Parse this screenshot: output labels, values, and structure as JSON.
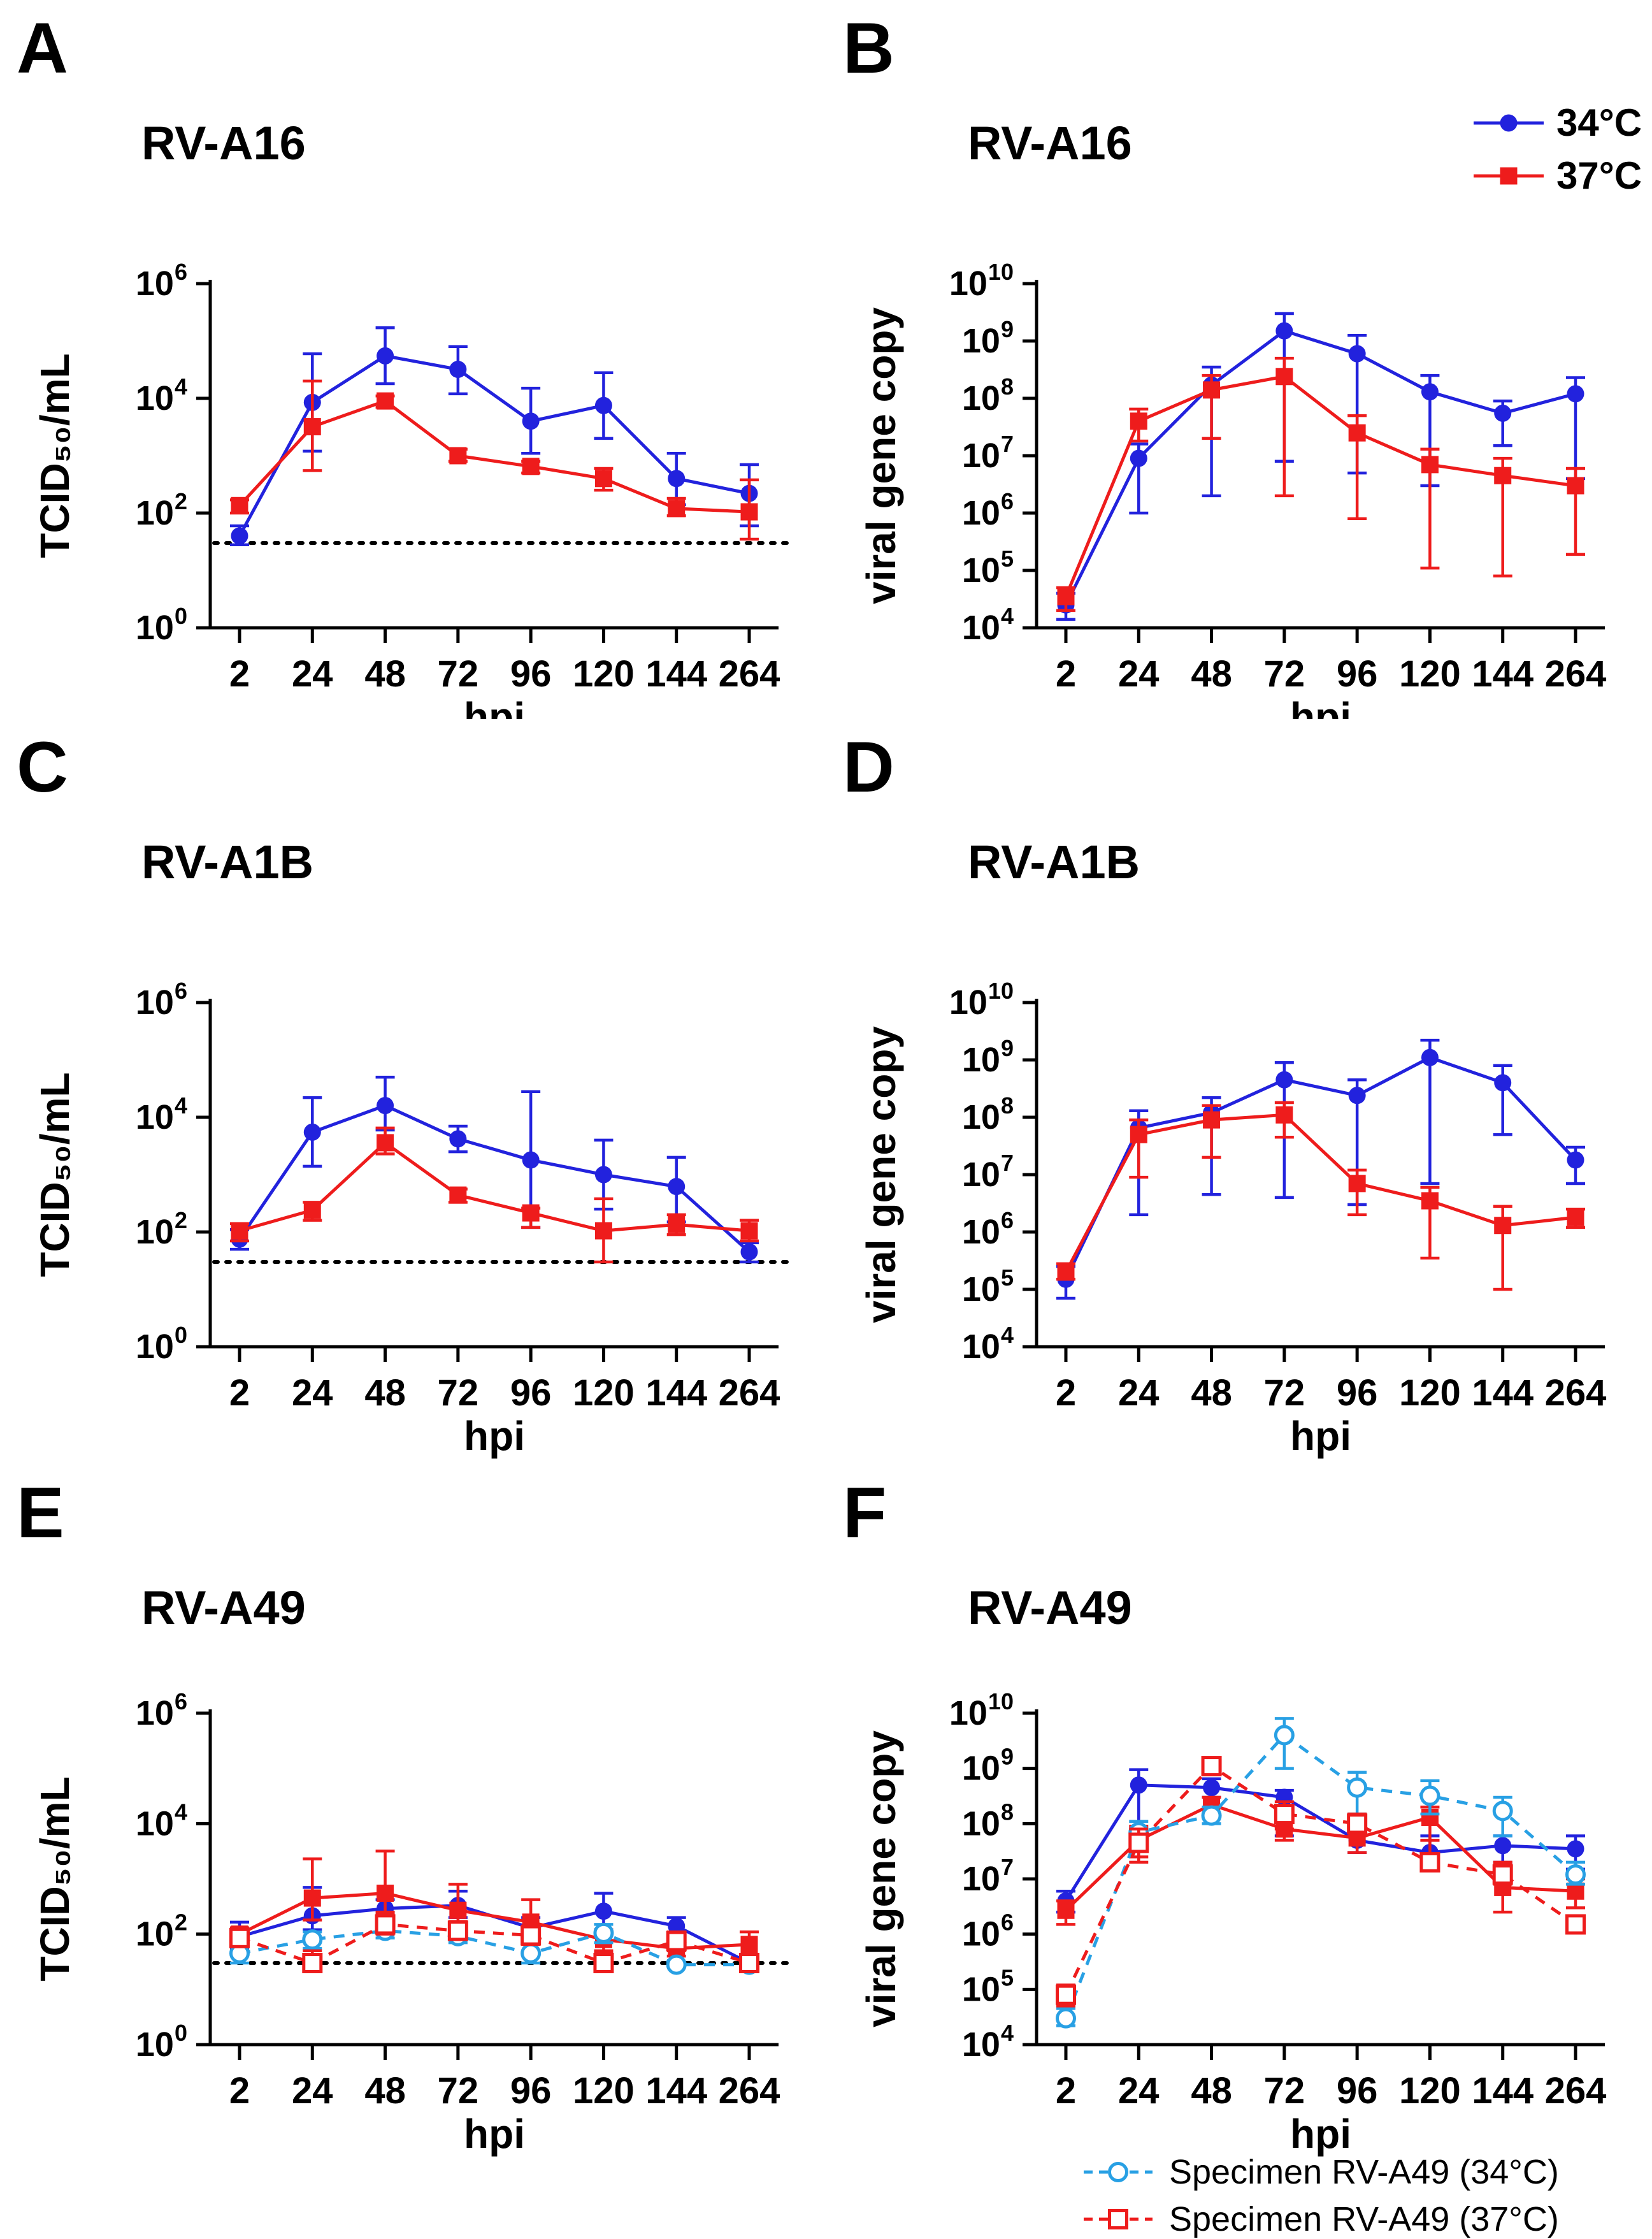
{
  "figure": {
    "colors": {
      "blue_34c": "#2222dd",
      "red_37c": "#ee1c1c",
      "cyan_specimen": "#28a0e4",
      "axis": "#000000"
    }
  },
  "legend_top": {
    "items": [
      {
        "label": "34°C",
        "color": "#2222dd",
        "marker": "circle",
        "fill": "solid",
        "dash": false
      },
      {
        "label": "37°C",
        "color": "#ee1c1c",
        "marker": "square",
        "fill": "solid",
        "dash": false
      }
    ]
  },
  "legend_bottom": {
    "items": [
      {
        "label": "Specimen RV-A49 (34°C)",
        "color": "#28a0e4",
        "marker": "circle",
        "fill": "open",
        "dash": true
      },
      {
        "label": "Specimen RV-A49 (37°C)",
        "color": "#ee1c1c",
        "marker": "square",
        "fill": "open",
        "dash": true
      }
    ]
  },
  "chart_data": [
    {
      "panel": "A",
      "title": "RV-A16",
      "type": "line",
      "x": [
        "2",
        "24",
        "48",
        "72",
        "96",
        "120",
        "144",
        "264"
      ],
      "xlabel": "hpi",
      "ylabel": "TCID₅₀/mL",
      "log_ymin": 0,
      "log_ymax": 6,
      "tick_step": 2,
      "detection_limit": 30,
      "series": [
        {
          "name": "34°C",
          "color": "#2222dd",
          "marker": "circle",
          "fill": "solid",
          "dash": false,
          "values": [
            40,
            8500,
            55000,
            32000,
            4000,
            7500,
            400,
            220
          ],
          "err_lo": [
            28,
            1200,
            18000,
            12000,
            1100,
            2000,
            140,
            60
          ],
          "err_hi": [
            60,
            60000,
            170000,
            80000,
            15000,
            28000,
            1100,
            700
          ]
        },
        {
          "name": "37°C",
          "color": "#ee1c1c",
          "marker": "square",
          "fill": "solid",
          "dash": false,
          "values": [
            135,
            3200,
            9000,
            1000,
            650,
            400,
            120,
            105
          ],
          "err_lo": [
            100,
            550,
            7000,
            800,
            500,
            250,
            90,
            35
          ],
          "err_hi": [
            170,
            20000,
            11000,
            1300,
            800,
            600,
            180,
            380
          ]
        }
      ]
    },
    {
      "panel": "B",
      "title": "RV-A16",
      "type": "line",
      "x": [
        "2",
        "24",
        "48",
        "72",
        "96",
        "120",
        "144",
        "264"
      ],
      "xlabel": "hpi",
      "ylabel": "viral gene copy",
      "log_ymin": 4,
      "log_ymax": 10,
      "tick_step": 1,
      "detection_limit": null,
      "series": [
        {
          "name": "34°C",
          "color": "#2222dd",
          "marker": "circle",
          "fill": "solid",
          "dash": false,
          "values": [
            25000.0,
            9000000.0,
            170000000.0,
            1500000000.0,
            600000000.0,
            130000000.0,
            55000000.0,
            120000000.0
          ],
          "err_lo": [
            14000.0,
            1000000.0,
            2000000.0,
            8000000.0,
            5000000.0,
            3000000.0,
            15000000.0,
            4000000.0
          ],
          "err_hi": [
            40000.0,
            16000000.0,
            350000000.0,
            3000000000.0,
            1250000000.0,
            250000000.0,
            90000000.0,
            230000000.0
          ]
        },
        {
          "name": "37°C",
          "color": "#ee1c1c",
          "marker": "square",
          "fill": "solid",
          "dash": false,
          "values": [
            35000.0,
            40000000.0,
            140000000.0,
            240000000.0,
            25000000.0,
            7000000.0,
            4500000.0,
            3000000.0
          ],
          "err_lo": [
            20000.0,
            18000000.0,
            20000000.0,
            2000000.0,
            800000.0,
            110000.0,
            80000.0,
            190000.0
          ],
          "err_hi": [
            50000.0,
            65000000.0,
            250000000.0,
            500000000.0,
            50000000.0,
            13000000.0,
            9000000.0,
            6000000.0
          ]
        }
      ]
    },
    {
      "panel": "C",
      "title": "RV-A1B",
      "type": "line",
      "x": [
        "2",
        "24",
        "48",
        "72",
        "96",
        "120",
        "144",
        "264"
      ],
      "xlabel": "hpi",
      "ylabel": "TCID₅₀/mL",
      "log_ymin": 0,
      "log_ymax": 6,
      "tick_step": 2,
      "detection_limit": 30,
      "series": [
        {
          "name": "34°C",
          "color": "#2222dd",
          "marker": "circle",
          "fill": "solid",
          "dash": false,
          "values": [
            75,
            5500,
            16000,
            4200,
            1800,
            1000,
            620,
            45
          ],
          "err_lo": [
            50,
            1400,
            6000,
            2500,
            120,
            250,
            150,
            30
          ],
          "err_hi": [
            110,
            22000,
            50000,
            7000,
            28000,
            4000,
            2000,
            65
          ]
        },
        {
          "name": "37°C",
          "color": "#ee1c1c",
          "marker": "square",
          "fill": "solid",
          "dash": false,
          "values": [
            105,
            240,
            3600,
            440,
            215,
            105,
            135,
            105
          ],
          "err_lo": [
            70,
            160,
            2300,
            330,
            120,
            30,
            90,
            70
          ],
          "err_hi": [
            140,
            330,
            6500,
            560,
            260,
            380,
            200,
            160
          ]
        }
      ]
    },
    {
      "panel": "D",
      "title": "RV-A1B",
      "type": "line",
      "x": [
        "2",
        "24",
        "48",
        "72",
        "96",
        "120",
        "144",
        "264"
      ],
      "xlabel": "hpi",
      "ylabel": "viral gene copy",
      "log_ymin": 4,
      "log_ymax": 10,
      "tick_step": 1,
      "detection_limit": null,
      "series": [
        {
          "name": "34°C",
          "color": "#2222dd",
          "marker": "circle",
          "fill": "solid",
          "dash": false,
          "values": [
            150000.0,
            65000000.0,
            120000000.0,
            450000000.0,
            240000000.0,
            1100000000.0,
            400000000.0,
            18000000.0
          ],
          "err_lo": [
            70000.0,
            2000000.0,
            4500000.0,
            4000000.0,
            3000000.0,
            7000000.0,
            50000000.0,
            7000000.0
          ],
          "err_hi": [
            250000.0,
            130000000.0,
            220000000.0,
            900000000.0,
            450000000.0,
            2200000000.0,
            800000000.0,
            30000000.0
          ]
        },
        {
          "name": "37°C",
          "color": "#ee1c1c",
          "marker": "square",
          "fill": "solid",
          "dash": false,
          "values": [
            200000.0,
            50000000.0,
            90000000.0,
            110000000.0,
            7000000.0,
            3500000.0,
            1300000.0,
            1800000.0
          ],
          "err_lo": [
            150000.0,
            9000000.0,
            20000000.0,
            45000000.0,
            2000000.0,
            350000.0,
            100000.0,
            1200000.0
          ],
          "err_hi": [
            280000.0,
            90000000.0,
            160000000.0,
            180000000.0,
            12000000.0,
            6000000.0,
            2800000.0,
            2500000.0
          ]
        }
      ]
    },
    {
      "panel": "E",
      "title": "RV-A49",
      "type": "line",
      "x": [
        "2",
        "24",
        "48",
        "72",
        "96",
        "120",
        "144",
        "264"
      ],
      "xlabel": "hpi",
      "ylabel": "TCID₅₀/mL",
      "log_ymin": 0,
      "log_ymax": 6,
      "tick_step": 2,
      "detection_limit": 30,
      "series": [
        {
          "name": "34°C",
          "color": "#2222dd",
          "marker": "circle",
          "fill": "solid",
          "dash": false,
          "values": [
            90,
            215,
            290,
            330,
            130,
            260,
            140,
            30
          ],
          "err_lo": [
            55,
            120,
            180,
            200,
            80,
            120,
            90,
            30
          ],
          "err_hi": [
            165,
            700,
            420,
            600,
            200,
            550,
            200,
            30
          ]
        },
        {
          "name": "37°C",
          "color": "#ee1c1c",
          "marker": "square",
          "fill": "solid",
          "dash": false,
          "values": [
            100,
            450,
            550,
            270,
            165,
            80,
            55,
            65
          ],
          "err_lo": [
            70,
            180,
            250,
            150,
            90,
            50,
            40,
            40
          ],
          "err_hi": [
            130,
            2300,
            3200,
            800,
            420,
            120,
            90,
            110
          ]
        },
        {
          "name": "Specimen RV-A49 (34°C)",
          "color": "#28a0e4",
          "marker": "circle",
          "fill": "open",
          "dash": true,
          "values": [
            45,
            80,
            115,
            92,
            45,
            105,
            28,
            28
          ],
          "err_lo": [
            30,
            55,
            85,
            70,
            30,
            70,
            28,
            28
          ],
          "err_hi": [
            70,
            110,
            160,
            130,
            70,
            150,
            28,
            28
          ]
        },
        {
          "name": "Specimen RV-A49 (37°C)",
          "color": "#ee1c1c",
          "marker": "square",
          "fill": "open",
          "dash": true,
          "values": [
            85,
            30,
            150,
            115,
            95,
            30,
            75,
            30
          ],
          "err_lo": [
            60,
            30,
            100,
            85,
            65,
            30,
            50,
            30
          ],
          "err_hi": [
            120,
            50,
            230,
            170,
            140,
            45,
            110,
            30
          ]
        }
      ]
    },
    {
      "panel": "F",
      "title": "RV-A49",
      "type": "line",
      "x": [
        "2",
        "24",
        "48",
        "72",
        "96",
        "120",
        "144",
        "264"
      ],
      "xlabel": "hpi",
      "ylabel": "viral gene copy",
      "log_ymin": 4,
      "log_ymax": 10,
      "tick_step": 1,
      "detection_limit": null,
      "series": [
        {
          "name": "34°C",
          "color": "#2222dd",
          "marker": "circle",
          "fill": "solid",
          "dash": false,
          "values": [
            4000000.0,
            500000000.0,
            450000000.0,
            300000000.0,
            50000000.0,
            30000000.0,
            40000000.0,
            35000000.0
          ],
          "err_lo": [
            2500000.0,
            80000000.0,
            300000000.0,
            60000000.0,
            30000000.0,
            20000000.0,
            20000000.0,
            15000000.0
          ],
          "err_hi": [
            6000000.0,
            950000000.0,
            650000000.0,
            400000000.0,
            90000000.0,
            60000000.0,
            60000000.0,
            60000000.0
          ]
        },
        {
          "name": "37°C",
          "color": "#ee1c1c",
          "marker": "square",
          "fill": "solid",
          "dash": false,
          "values": [
            2700000.0,
            50000000.0,
            220000000.0,
            80000000.0,
            55000000.0,
            130000000.0,
            7000000.0,
            6000000.0
          ],
          "err_lo": [
            1500000.0,
            25000000.0,
            150000000.0,
            50000000.0,
            30000000.0,
            50000000.0,
            2500000.0,
            3000000.0
          ],
          "err_hi": [
            4000000.0,
            90000000.0,
            300000000.0,
            150000000.0,
            80000000.0,
            200000000.0,
            20000000.0,
            10000000.0
          ]
        },
        {
          "name": "Specimen RV-A49 (34°C)",
          "color": "#28a0e4",
          "marker": "circle",
          "fill": "open",
          "dash": true,
          "values": [
            30000.0,
            70000000.0,
            140000000.0,
            4000000000.0,
            450000000.0,
            320000000.0,
            170000000.0,
            12000000.0
          ],
          "err_lo": [
            22000.0,
            40000000.0,
            100000000.0,
            1000000000.0,
            150000000.0,
            150000000.0,
            60000000.0,
            8000000.0
          ],
          "err_hi": [
            45000.0,
            110000000.0,
            200000000.0,
            8000000000.0,
            850000000.0,
            600000000.0,
            300000000.0,
            20000000.0
          ]
        },
        {
          "name": "Specimen RV-A49 (37°C)",
          "color": "#ee1c1c",
          "marker": "square",
          "fill": "open",
          "dash": true,
          "values": [
            80000.0,
            45000000.0,
            1100000000.0,
            150000000.0,
            100000000.0,
            20000000.0,
            12000000.0,
            1500000.0
          ],
          "err_lo": [
            50000.0,
            20000000.0,
            900000000.0,
            80000000.0,
            60000000.0,
            15000000.0,
            8000000.0,
            1200000.0
          ],
          "err_hi": [
            120000.0,
            80000000.0,
            1300000000.0,
            250000000.0,
            150000000.0,
            50000000.0,
            18000000.0,
            2000000.0
          ]
        }
      ]
    }
  ]
}
